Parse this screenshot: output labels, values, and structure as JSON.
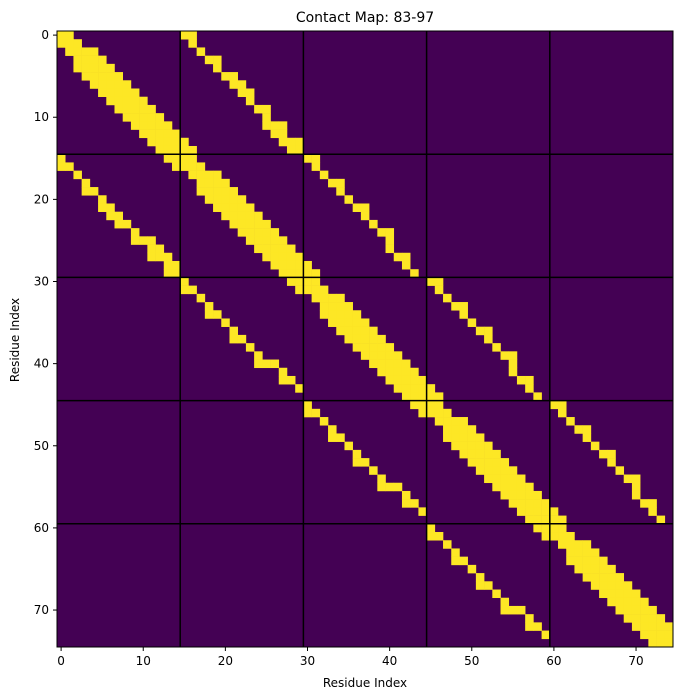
{
  "chart_data": {
    "type": "heatmap",
    "title": "Contact Map: 83-97",
    "xlabel": "Residue Index",
    "ylabel": "Residue Index",
    "size": 75,
    "xlim": [
      -0.5,
      74.5
    ],
    "ylim": [
      74.5,
      -0.5
    ],
    "xticks": [
      0,
      10,
      20,
      30,
      40,
      50,
      60,
      70
    ],
    "yticks": [
      0,
      10,
      20,
      30,
      40,
      50,
      60,
      70
    ],
    "block_boundaries": [
      14.5,
      29.5,
      44.5,
      59.5
    ],
    "colors": {
      "background": "#440154",
      "contact": "#fde725",
      "grid": "#000000"
    },
    "contact_rule": "symmetric binary contact map: diagonal bands of width ~3 within each 15-residue segment, plus mirrored off-diagonal stripes between adjacent segments"
  }
}
